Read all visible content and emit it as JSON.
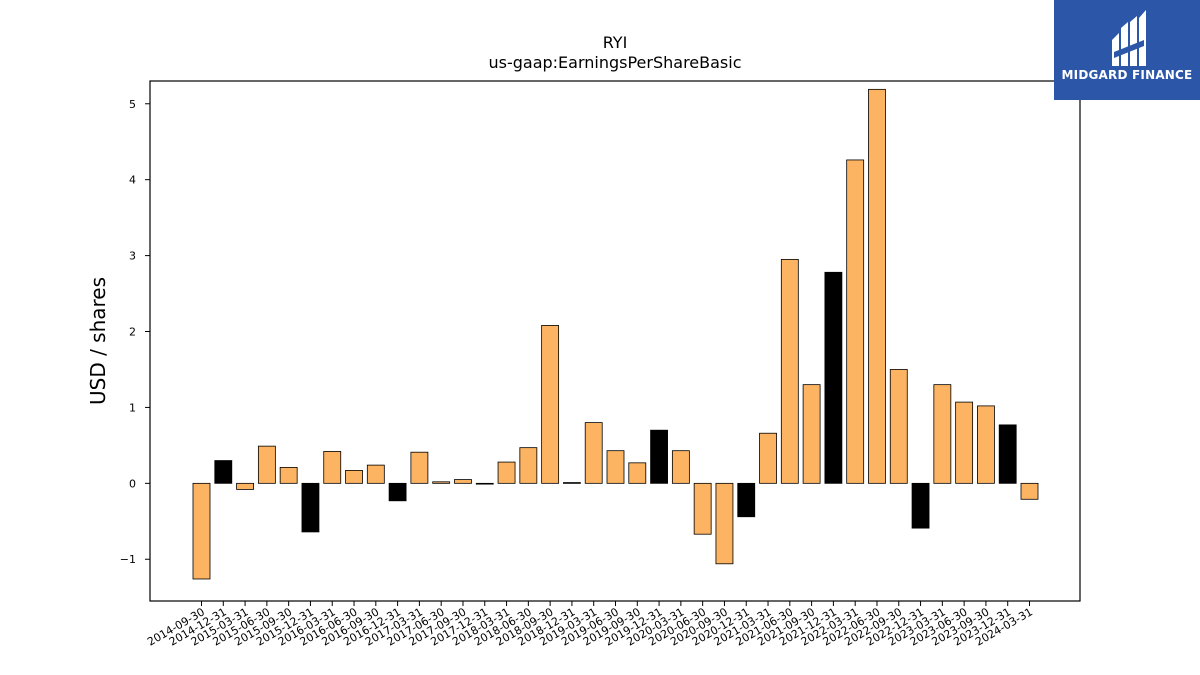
{
  "logo": {
    "text": "MIDGARD FINANCE",
    "background": "#2c57a8"
  },
  "chart_data": {
    "type": "bar",
    "title": "RYI",
    "subtitle": "us-gaap:EarningsPerShareBasic",
    "ylabel": "USD / shares",
    "xlabel": "",
    "ylim": [
      -1.55,
      5.3
    ],
    "yticks": [
      -1,
      0,
      1,
      2,
      3,
      4,
      5
    ],
    "ytick_labels": [
      "−1",
      "0",
      "1",
      "2",
      "3",
      "4",
      "5"
    ],
    "grid": false,
    "colors": {
      "quarter": "#fdb462",
      "annual": "#000000",
      "edge": "#000000"
    },
    "categories": [
      "2014-09-30",
      "2014-12-31",
      "2015-03-31",
      "2015-06-30",
      "2015-09-30",
      "2015-12-31",
      "2016-03-31",
      "2016-06-30",
      "2016-09-30",
      "2016-12-31",
      "2017-03-31",
      "2017-06-30",
      "2017-09-30",
      "2017-12-31",
      "2018-03-31",
      "2018-06-30",
      "2018-09-30",
      "2018-12-31",
      "2019-03-31",
      "2019-06-30",
      "2019-09-30",
      "2019-12-31",
      "2020-03-31",
      "2020-06-30",
      "2020-09-30",
      "2020-12-31",
      "2021-03-31",
      "2021-06-30",
      "2021-09-30",
      "2021-12-31",
      "2022-03-31",
      "2022-06-30",
      "2022-09-30",
      "2022-12-31",
      "2023-03-31",
      "2023-06-30",
      "2023-09-30",
      "2023-12-31",
      "2024-03-31"
    ],
    "values": [
      -1.26,
      0.3,
      -0.08,
      0.49,
      0.21,
      -0.64,
      0.42,
      0.17,
      0.24,
      -0.23,
      0.41,
      0.02,
      0.05,
      -0.01,
      0.28,
      0.47,
      2.08,
      0.01,
      0.8,
      0.43,
      0.27,
      0.7,
      0.43,
      -0.67,
      -1.06,
      -0.44,
      0.66,
      2.95,
      1.3,
      2.78,
      4.26,
      5.19,
      1.5,
      -0.59,
      1.3,
      1.07,
      1.02,
      0.77,
      -0.21
    ],
    "annual": [
      false,
      true,
      false,
      false,
      false,
      true,
      false,
      false,
      false,
      true,
      false,
      false,
      false,
      false,
      false,
      false,
      false,
      true,
      false,
      false,
      false,
      true,
      false,
      false,
      false,
      true,
      false,
      false,
      false,
      true,
      false,
      false,
      false,
      true,
      false,
      false,
      false,
      true,
      false
    ]
  }
}
